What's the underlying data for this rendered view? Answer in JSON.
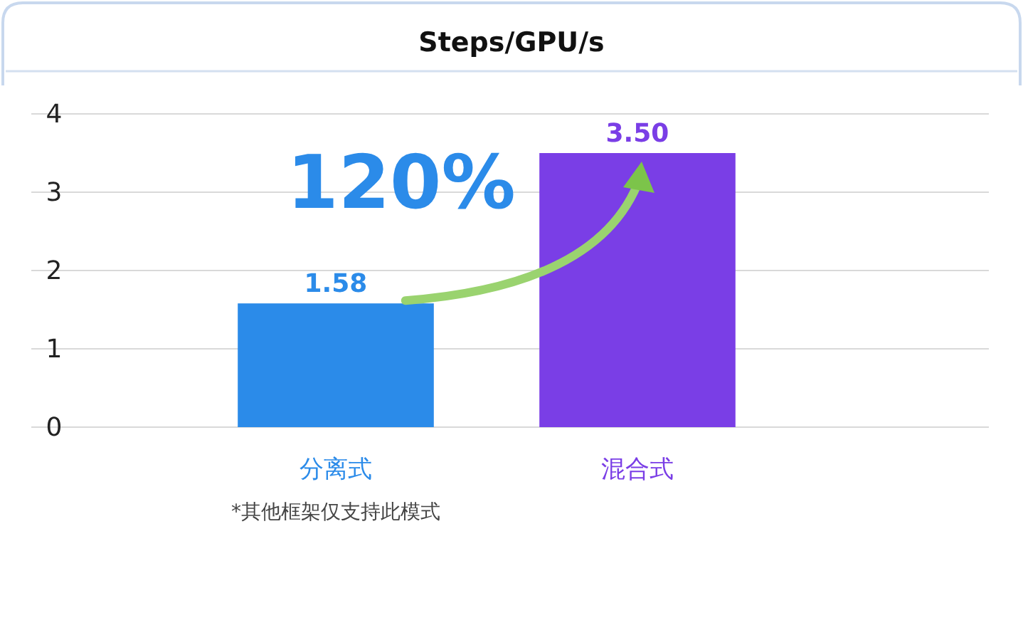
{
  "chart_data": {
    "type": "bar",
    "title": "Steps/GPU/s",
    "categories": [
      "分离式",
      "混合式"
    ],
    "values": [
      1.58,
      3.5
    ],
    "colors": [
      "#2b8be9",
      "#7a3ee6"
    ],
    "value_labels": [
      "1.58",
      "3.50"
    ],
    "ylim": [
      0,
      4
    ],
    "yticks": [
      0,
      1,
      2,
      3,
      4
    ],
    "grid": "y",
    "annotations": [
      "120%",
      "*其他框架仅支持此模式"
    ]
  }
}
